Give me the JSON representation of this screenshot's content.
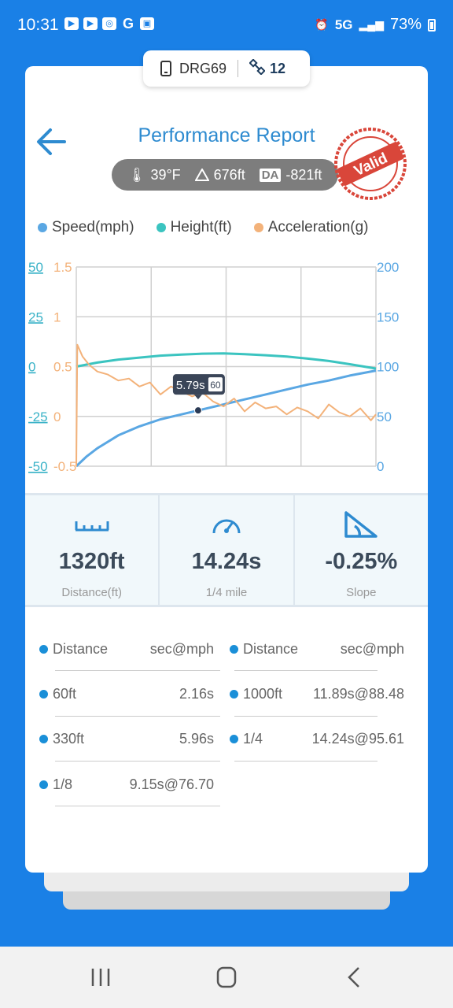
{
  "status_bar": {
    "time": "10:31",
    "network": "5G",
    "battery": "73%"
  },
  "device": {
    "name": "DRG69",
    "satellites": "12"
  },
  "title": "Performance Report",
  "conditions": {
    "temperature": "39°F",
    "altitude": "676ft",
    "da_label": "DA",
    "density_altitude": "-821ft"
  },
  "stamp": {
    "text": "Valid"
  },
  "legend": [
    {
      "label": "Speed(mph)",
      "color": "#5aa7e3"
    },
    {
      "label": "Height(ft)",
      "color": "#3bc4c0"
    },
    {
      "label": "Acceleration(g)",
      "color": "#f3b27a"
    }
  ],
  "chart_data": {
    "type": "line",
    "left_axis_1": {
      "ticks": [
        "50",
        "25",
        "0",
        "-25",
        "-50"
      ],
      "color": "#3bb3c8"
    },
    "left_axis_2": {
      "ticks": [
        "1.5",
        "1",
        "0.5",
        "0",
        "-0.5"
      ],
      "color": "#f3b27a"
    },
    "right_axis": {
      "ticks": [
        "200",
        "150",
        "100",
        "50",
        "0"
      ],
      "color": "#5aa7e3"
    },
    "x_range_s": [
      0,
      14.24
    ],
    "series": [
      {
        "name": "Speed(mph)",
        "color": "#5aa7e3",
        "axis": "right",
        "x": [
          0,
          0.5,
          1,
          2,
          3,
          4,
          5,
          5.79,
          7,
          8,
          9,
          10,
          11,
          12,
          13,
          14.24
        ],
        "y": [
          0,
          10,
          18,
          31,
          40,
          47,
          52,
          56,
          62,
          67,
          72,
          77,
          82,
          86,
          91,
          96
        ]
      },
      {
        "name": "Height(ft)",
        "color": "#3bc4c0",
        "axis": "left1",
        "x": [
          0,
          1,
          2,
          3,
          4,
          5,
          6,
          7,
          8,
          9,
          10,
          11,
          12,
          13,
          14.24
        ],
        "y": [
          0,
          2,
          3.5,
          4.5,
          5.5,
          6,
          6.5,
          6.6,
          6.2,
          5.7,
          5,
          4,
          2.8,
          1.2,
          -1
        ]
      },
      {
        "name": "Acceleration(g)",
        "color": "#f3b27a",
        "axis": "left2",
        "x": [
          0,
          0.05,
          0.3,
          0.6,
          1,
          1.5,
          2,
          2.5,
          3,
          3.5,
          4,
          4.5,
          5,
          5.5,
          6,
          6.5,
          7,
          7.5,
          8,
          8.5,
          9,
          9.5,
          10,
          10.5,
          11,
          11.5,
          12,
          12.5,
          13,
          13.5,
          14,
          14.24
        ],
        "y": [
          -0.5,
          0.72,
          0.6,
          0.52,
          0.45,
          0.42,
          0.36,
          0.38,
          0.3,
          0.34,
          0.22,
          0.3,
          0.25,
          0.2,
          0.24,
          0.15,
          0.1,
          0.18,
          0.05,
          0.14,
          0.08,
          0.1,
          0.02,
          0.09,
          0.05,
          -0.02,
          0.12,
          0.04,
          0.0,
          0.08,
          -0.04,
          0.02
        ]
      }
    ],
    "marker": {
      "x": 5.79,
      "y": 56,
      "label": "5.79s",
      "badge": "60"
    },
    "grid": true
  },
  "stats": [
    {
      "value": "1320ft",
      "label": "Distance(ft)"
    },
    {
      "value": "14.24s",
      "label": "1/4 mile"
    },
    {
      "value": "-0.25%",
      "label": "Slope"
    }
  ],
  "splits": {
    "header": {
      "col1": "Distance",
      "col2": "sec@mph"
    },
    "left": [
      {
        "distance": "60ft",
        "value": "2.16s"
      },
      {
        "distance": "330ft",
        "value": "5.96s"
      },
      {
        "distance": "1/8",
        "value": "9.15s@76.70"
      }
    ],
    "right": [
      {
        "distance": "1000ft",
        "value": "11.89s@88.48"
      },
      {
        "distance": "1/4",
        "value": "14.24s@95.61"
      }
    ]
  }
}
